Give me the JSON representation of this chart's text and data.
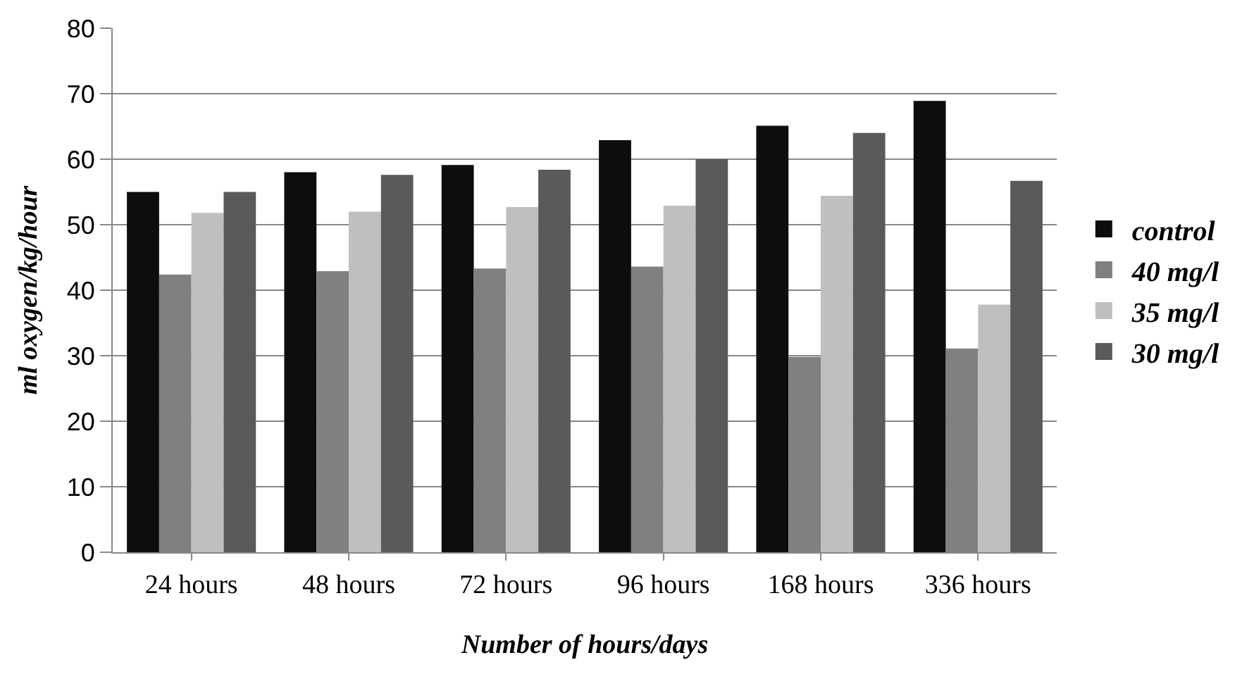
{
  "chart_data": {
    "type": "bar",
    "xlabel": "Number of hours/days",
    "ylabel": "ml oxygen/kg/hour",
    "categories": [
      "24 hours",
      "48 hours",
      "72 hours",
      "96 hours",
      "168 hours",
      "336 hours"
    ],
    "series": [
      {
        "name": "control",
        "color": "#0d0d0d",
        "values": [
          55,
          58,
          59.1,
          62.9,
          65.1,
          68.9
        ]
      },
      {
        "name": "40 mg/l",
        "color": "#808080",
        "values": [
          42.4,
          42.9,
          43.3,
          43.6,
          29.8,
          31.1
        ]
      },
      {
        "name": "35 mg/l",
        "color": "#bfbfbf",
        "values": [
          51.8,
          52,
          52.7,
          52.9,
          54.4,
          37.8
        ]
      },
      {
        "name": "30 mg/l",
        "color": "#5a5a5a",
        "values": [
          55,
          57.6,
          58.4,
          60,
          64,
          56.7
        ]
      }
    ],
    "ylim": [
      0,
      80
    ],
    "yticks": [
      0,
      10,
      20,
      30,
      40,
      50,
      60,
      70,
      80
    ],
    "grid": "y",
    "legend": "right"
  }
}
